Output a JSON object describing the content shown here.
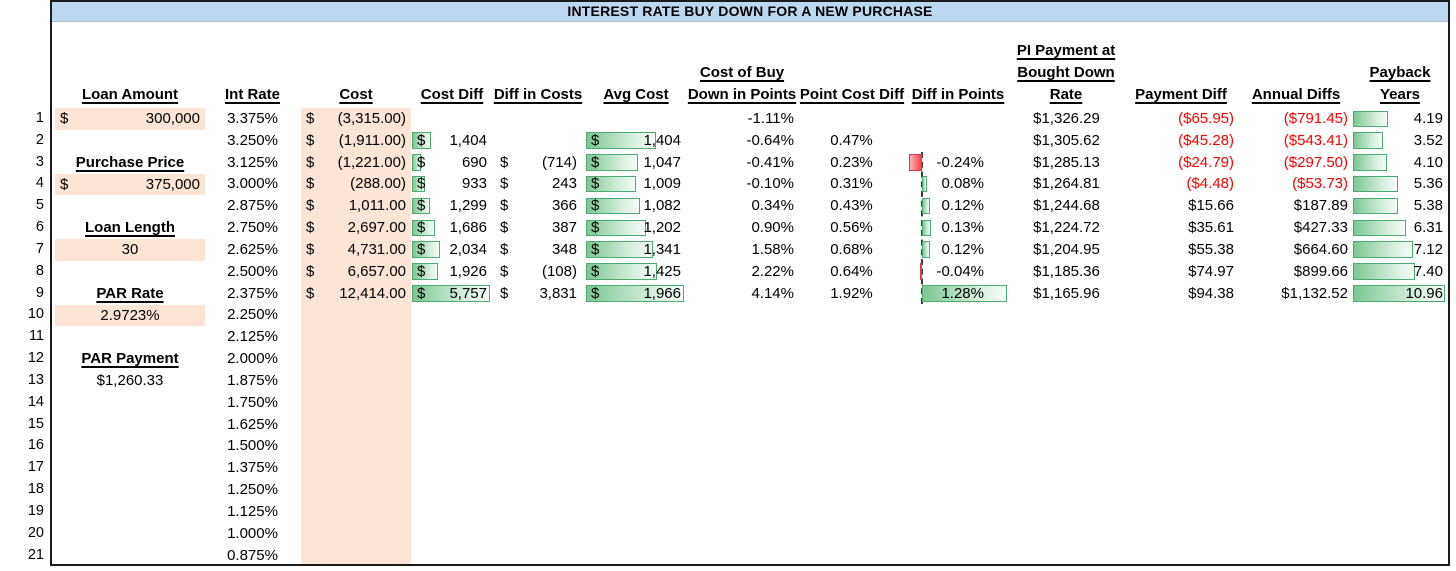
{
  "title": "INTEREST RATE BUY DOWN FOR A NEW PURCHASE",
  "headers": {
    "loan_amount": "Loan Amount",
    "int_rate": "Int Rate",
    "cost": "Cost",
    "cost_diff": "Cost Diff",
    "diff_in_costs": "Diff in Costs",
    "avg_cost": "Avg Cost",
    "buy_down_l1": "Cost of Buy",
    "buy_down_l2": "Down in Points",
    "point_cost_diff": "Point Cost Diff",
    "diff_in_points": "Diff in Points",
    "pi_payment_l1": "PI Payment at",
    "pi_payment_l2": "Bought Down",
    "pi_payment_l3": "Rate",
    "payment_diff": "Payment Diff",
    "annual_diffs": "Annual Diffs",
    "payback_l1": "Payback",
    "payback_l2": "Years"
  },
  "left_panel": {
    "loan_amount": {
      "d": "$",
      "v": "300,000"
    },
    "purchase_price_label": "Purchase Price",
    "purchase_price": {
      "d": "$",
      "v": "375,000"
    },
    "loan_length_label": "Loan Length",
    "loan_length": "30",
    "par_rate_label": "PAR Rate",
    "par_rate": "2.9723%",
    "par_payment_label": "PAR Payment",
    "par_payment": "$1,260.33"
  },
  "row_numbers": [
    "1",
    "2",
    "3",
    "4",
    "5",
    "6",
    "7",
    "8",
    "9",
    "10",
    "11",
    "12",
    "13",
    "14",
    "15",
    "16",
    "17",
    "18",
    "19",
    "20",
    "21"
  ],
  "int_rates": [
    "3.375%",
    "3.250%",
    "3.125%",
    "3.000%",
    "2.875%",
    "2.750%",
    "2.625%",
    "2.500%",
    "2.375%",
    "2.250%",
    "2.125%",
    "2.000%",
    "1.875%",
    "1.750%",
    "1.625%",
    "1.500%",
    "1.375%",
    "1.250%",
    "1.125%",
    "1.000%",
    "0.875%"
  ],
  "bar_scales": {
    "cost_diff_max": 5757,
    "avg_cost_max": 1966,
    "payback_max": 10.96,
    "diff_points_min": -0.24,
    "diff_points_max": 1.28
  },
  "rows": [
    {
      "cost": {
        "d": "$",
        "v": "(3,315.00)"
      },
      "buy_down": "-1.11%",
      "pi_payment": "$1,326.29",
      "payment_diff": "($65.95)",
      "annual_diffs": "($791.45)",
      "payback": {
        "v": "4.19",
        "num": 4.19
      }
    },
    {
      "cost": {
        "d": "$",
        "v": "(1,911.00)"
      },
      "cost_diff": {
        "d": "$",
        "v": "1,404",
        "num": 1404
      },
      "avg_cost": {
        "d": "$",
        "v": "1,404",
        "num": 1404
      },
      "buy_down": "-0.64%",
      "point_cost_diff": "0.47%",
      "pi_payment": "$1,305.62",
      "payment_diff": "($45.28)",
      "annual_diffs": "($543.41)",
      "payback": {
        "v": "3.52",
        "num": 3.52
      }
    },
    {
      "cost": {
        "d": "$",
        "v": "(1,221.00)"
      },
      "cost_diff": {
        "d": "$",
        "v": "690",
        "num": 690
      },
      "diff_in_costs": {
        "d": "$",
        "v": "(714)"
      },
      "avg_cost": {
        "d": "$",
        "v": "1,047",
        "num": 1047
      },
      "buy_down": "-0.41%",
      "point_cost_diff": "0.23%",
      "diff_points": {
        "v": "-0.24%",
        "num": -0.24
      },
      "pi_payment": "$1,285.13",
      "payment_diff": "($24.79)",
      "annual_diffs": "($297.50)",
      "payback": {
        "v": "4.10",
        "num": 4.1
      }
    },
    {
      "cost": {
        "d": "$",
        "v": "(288.00)"
      },
      "cost_diff": {
        "d": "$",
        "v": "933",
        "num": 933
      },
      "diff_in_costs": {
        "d": "$",
        "v": "243"
      },
      "avg_cost": {
        "d": "$",
        "v": "1,009",
        "num": 1009
      },
      "buy_down": "-0.10%",
      "point_cost_diff": "0.31%",
      "diff_points": {
        "v": "0.08%",
        "num": 0.08
      },
      "pi_payment": "$1,264.81",
      "payment_diff": "($4.48)",
      "annual_diffs": "($53.73)",
      "payback": {
        "v": "5.36",
        "num": 5.36
      }
    },
    {
      "cost": {
        "d": "$",
        "v": "1,011.00"
      },
      "cost_diff": {
        "d": "$",
        "v": "1,299",
        "num": 1299
      },
      "diff_in_costs": {
        "d": "$",
        "v": "366"
      },
      "avg_cost": {
        "d": "$",
        "v": "1,082",
        "num": 1082
      },
      "buy_down": "0.34%",
      "point_cost_diff": "0.43%",
      "diff_points": {
        "v": "0.12%",
        "num": 0.12
      },
      "pi_payment": "$1,244.68",
      "payment_diff": "$15.66",
      "annual_diffs": "$187.89",
      "payback": {
        "v": "5.38",
        "num": 5.38
      }
    },
    {
      "cost": {
        "d": "$",
        "v": "2,697.00"
      },
      "cost_diff": {
        "d": "$",
        "v": "1,686",
        "num": 1686
      },
      "diff_in_costs": {
        "d": "$",
        "v": "387"
      },
      "avg_cost": {
        "d": "$",
        "v": "1,202",
        "num": 1202
      },
      "buy_down": "0.90%",
      "point_cost_diff": "0.56%",
      "diff_points": {
        "v": "0.13%",
        "num": 0.13
      },
      "pi_payment": "$1,224.72",
      "payment_diff": "$35.61",
      "annual_diffs": "$427.33",
      "payback": {
        "v": "6.31",
        "num": 6.31
      }
    },
    {
      "cost": {
        "d": "$",
        "v": "4,731.00"
      },
      "cost_diff": {
        "d": "$",
        "v": "2,034",
        "num": 2034
      },
      "diff_in_costs": {
        "d": "$",
        "v": "348"
      },
      "avg_cost": {
        "d": "$",
        "v": "1,341",
        "num": 1341
      },
      "buy_down": "1.58%",
      "point_cost_diff": "0.68%",
      "diff_points": {
        "v": "0.12%",
        "num": 0.12
      },
      "pi_payment": "$1,204.95",
      "payment_diff": "$55.38",
      "annual_diffs": "$664.60",
      "payback": {
        "v": "7.12",
        "num": 7.12
      }
    },
    {
      "cost": {
        "d": "$",
        "v": "6,657.00"
      },
      "cost_diff": {
        "d": "$",
        "v": "1,926",
        "num": 1926
      },
      "diff_in_costs": {
        "d": "$",
        "v": "(108)"
      },
      "avg_cost": {
        "d": "$",
        "v": "1,425",
        "num": 1425
      },
      "buy_down": "2.22%",
      "point_cost_diff": "0.64%",
      "diff_points": {
        "v": "-0.04%",
        "num": -0.04
      },
      "pi_payment": "$1,185.36",
      "payment_diff": "$74.97",
      "annual_diffs": "$899.66",
      "payback": {
        "v": "7.40",
        "num": 7.4
      }
    },
    {
      "cost": {
        "d": "$",
        "v": "12,414.00"
      },
      "cost_diff": {
        "d": "$",
        "v": "5,757",
        "num": 5757
      },
      "diff_in_costs": {
        "d": "$",
        "v": "3,831"
      },
      "avg_cost": {
        "d": "$",
        "v": "1,966",
        "num": 1966
      },
      "buy_down": "4.14%",
      "point_cost_diff": "1.92%",
      "diff_points": {
        "v": "1.28%",
        "num": 1.28
      },
      "pi_payment": "$1,165.96",
      "payment_diff": "$94.38",
      "annual_diffs": "$1,132.52",
      "payback": {
        "v": "10.96",
        "num": 10.96
      }
    }
  ],
  "colors": {
    "title_bg": "#BDD7EE",
    "input_fill": "#FCE4D6",
    "bar_green_border": "#4EA972",
    "bar_red_border": "#D43F47",
    "negative_text": "#FF0000"
  }
}
